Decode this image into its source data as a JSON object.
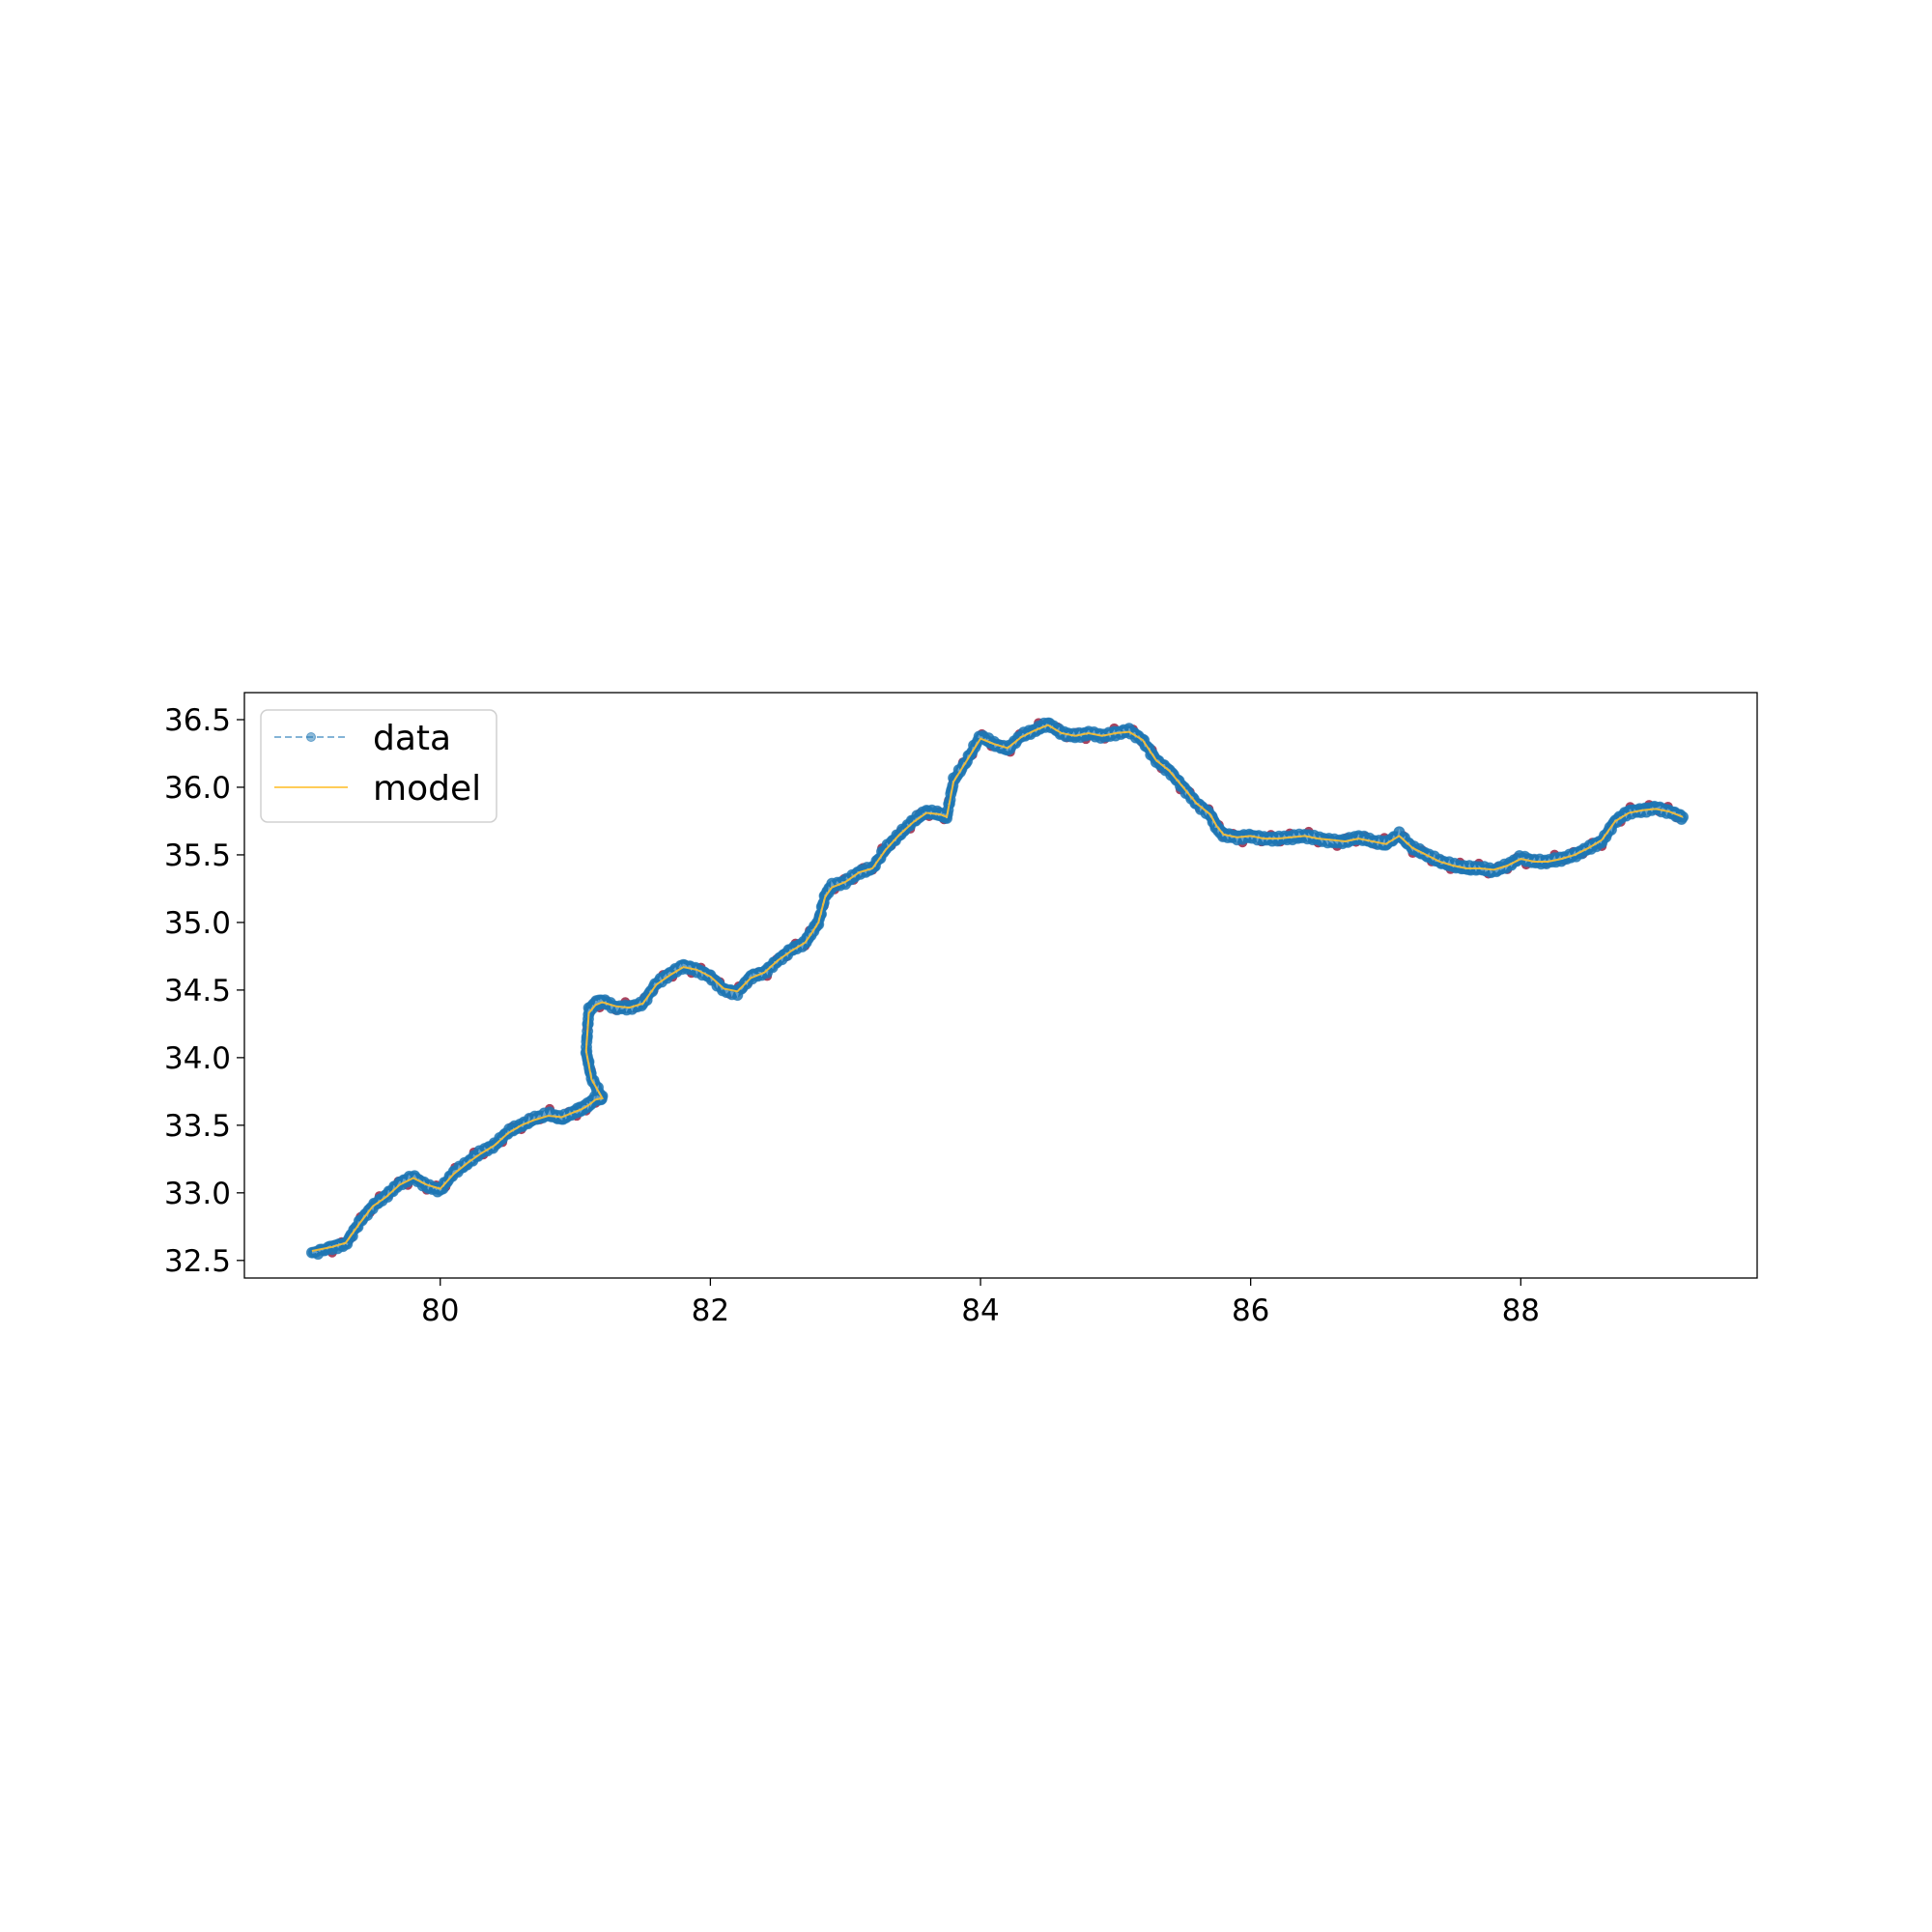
{
  "chart_data": {
    "type": "line",
    "title": "",
    "xlabel": "",
    "ylabel": "",
    "xlim": [
      78.55,
      89.75
    ],
    "ylim": [
      32.37,
      36.7
    ],
    "xticks": [
      80,
      82,
      84,
      86,
      88
    ],
    "xtick_labels": [
      "80",
      "82",
      "84",
      "86",
      "88"
    ],
    "yticks": [
      32.5,
      33.0,
      33.5,
      34.0,
      34.5,
      35.0,
      35.5,
      36.0,
      36.5
    ],
    "ytick_labels": [
      "32.5",
      "33.0",
      "33.5",
      "34.0",
      "34.5",
      "35.0",
      "35.5",
      "36.0",
      "36.5"
    ],
    "grid": false,
    "legend": {
      "position": "top-left",
      "entries": [
        "data",
        "model"
      ]
    },
    "colors": {
      "data": "#1f77b4",
      "model": "#ffbf2e",
      "outlier": "#9b2242"
    },
    "series": [
      {
        "name": "data",
        "style": "dashed-markers",
        "x": [
          79.05,
          79.2,
          79.3,
          79.4,
          79.5,
          79.6,
          79.7,
          79.8,
          79.9,
          80.0,
          80.1,
          80.2,
          80.3,
          80.4,
          80.5,
          80.6,
          80.7,
          80.8,
          80.9,
          81.0,
          81.05,
          81.1,
          81.15,
          81.2,
          81.12,
          81.08,
          81.1,
          81.15,
          81.2,
          81.3,
          81.4,
          81.5,
          81.6,
          81.7,
          81.8,
          81.9,
          82.0,
          82.1,
          82.2,
          82.3,
          82.4,
          82.5,
          82.6,
          82.7,
          82.75,
          82.8,
          82.85,
          82.9,
          83.0,
          83.1,
          83.2,
          83.3,
          83.4,
          83.5,
          83.6,
          83.7,
          83.75,
          83.8,
          83.9,
          84.0,
          84.1,
          84.2,
          84.3,
          84.4,
          84.5,
          84.6,
          84.7,
          84.8,
          84.9,
          85.0,
          85.1,
          85.2,
          85.3,
          85.4,
          85.5,
          85.6,
          85.7,
          85.75,
          85.8,
          85.9,
          86.0,
          86.1,
          86.2,
          86.3,
          86.4,
          86.5,
          86.6,
          86.7,
          86.8,
          86.9,
          87.0,
          87.1,
          87.2,
          87.3,
          87.4,
          87.5,
          87.6,
          87.7,
          87.8,
          87.9,
          88.0,
          88.1,
          88.2,
          88.3,
          88.4,
          88.5,
          88.6,
          88.7,
          88.8,
          88.9,
          89.0,
          89.1,
          89.2
        ],
        "y": [
          32.55,
          32.6,
          32.62,
          32.78,
          32.9,
          32.98,
          33.07,
          33.12,
          33.05,
          33.02,
          33.15,
          33.22,
          33.3,
          33.35,
          33.45,
          33.5,
          33.55,
          33.58,
          33.55,
          33.6,
          33.62,
          33.65,
          33.7,
          33.7,
          33.85,
          34.05,
          34.35,
          34.4,
          34.42,
          34.37,
          34.37,
          34.4,
          34.55,
          34.62,
          34.68,
          34.65,
          34.6,
          34.5,
          34.48,
          34.6,
          34.63,
          34.72,
          34.8,
          34.85,
          34.93,
          35.0,
          35.2,
          35.27,
          35.3,
          35.37,
          35.4,
          35.55,
          35.65,
          35.75,
          35.82,
          35.8,
          35.78,
          36.05,
          36.2,
          36.38,
          36.32,
          36.28,
          36.38,
          36.42,
          36.47,
          36.4,
          36.38,
          36.4,
          36.38,
          36.4,
          36.42,
          36.35,
          36.2,
          36.12,
          36.0,
          35.88,
          35.8,
          35.7,
          35.65,
          35.63,
          35.64,
          35.62,
          35.62,
          35.63,
          35.64,
          35.62,
          35.6,
          35.6,
          35.63,
          35.6,
          35.58,
          35.65,
          35.55,
          35.5,
          35.45,
          35.42,
          35.4,
          35.4,
          35.38,
          35.42,
          35.48,
          35.45,
          35.45,
          35.47,
          35.5,
          35.55,
          35.6,
          35.75,
          35.82,
          35.83,
          35.85,
          35.82,
          35.78
        ]
      },
      {
        "name": "model",
        "style": "solid",
        "x": [
          79.05,
          79.2,
          79.3,
          79.4,
          79.5,
          79.6,
          79.7,
          79.8,
          79.9,
          80.0,
          80.1,
          80.2,
          80.3,
          80.4,
          80.5,
          80.6,
          80.7,
          80.8,
          80.9,
          81.0,
          81.05,
          81.1,
          81.15,
          81.2,
          81.12,
          81.08,
          81.1,
          81.15,
          81.2,
          81.3,
          81.4,
          81.5,
          81.6,
          81.7,
          81.8,
          81.9,
          82.0,
          82.1,
          82.2,
          82.3,
          82.4,
          82.5,
          82.6,
          82.7,
          82.75,
          82.8,
          82.85,
          82.9,
          83.0,
          83.1,
          83.2,
          83.3,
          83.4,
          83.5,
          83.6,
          83.7,
          83.75,
          83.8,
          83.9,
          84.0,
          84.1,
          84.2,
          84.3,
          84.4,
          84.5,
          84.6,
          84.7,
          84.8,
          84.9,
          85.0,
          85.1,
          85.2,
          85.3,
          85.4,
          85.5,
          85.6,
          85.7,
          85.75,
          85.8,
          85.9,
          86.0,
          86.1,
          86.2,
          86.3,
          86.4,
          86.5,
          86.6,
          86.7,
          86.8,
          86.9,
          87.0,
          87.1,
          87.2,
          87.3,
          87.4,
          87.5,
          87.6,
          87.7,
          87.8,
          87.9,
          88.0,
          88.1,
          88.2,
          88.3,
          88.4,
          88.5,
          88.6,
          88.7,
          88.8,
          88.9,
          89.0,
          89.1,
          89.2
        ],
        "y": [
          32.57,
          32.6,
          32.63,
          32.77,
          32.9,
          32.97,
          33.06,
          33.11,
          33.06,
          33.03,
          33.14,
          33.22,
          33.29,
          33.35,
          33.44,
          33.5,
          33.54,
          33.57,
          33.56,
          33.6,
          33.62,
          33.65,
          33.69,
          33.7,
          33.84,
          34.05,
          34.33,
          34.39,
          34.41,
          34.38,
          34.37,
          34.4,
          34.54,
          34.61,
          34.67,
          34.65,
          34.6,
          34.51,
          34.49,
          34.59,
          34.63,
          34.72,
          34.79,
          34.85,
          34.92,
          35.0,
          35.19,
          35.26,
          35.3,
          35.37,
          35.4,
          35.54,
          35.65,
          35.74,
          35.81,
          35.8,
          35.78,
          36.04,
          36.2,
          36.36,
          36.32,
          36.29,
          36.37,
          36.42,
          36.46,
          36.4,
          36.38,
          36.4,
          36.38,
          36.4,
          36.41,
          36.35,
          36.2,
          36.12,
          36.0,
          35.88,
          35.8,
          35.71,
          35.65,
          35.63,
          35.64,
          35.62,
          35.62,
          35.63,
          35.64,
          35.62,
          35.61,
          35.6,
          35.62,
          35.6,
          35.58,
          35.64,
          35.55,
          35.5,
          35.45,
          35.42,
          35.4,
          35.4,
          35.39,
          35.42,
          35.47,
          35.45,
          35.45,
          35.47,
          35.5,
          35.55,
          35.61,
          35.75,
          35.81,
          35.83,
          35.84,
          35.82,
          35.78
        ]
      }
    ]
  }
}
